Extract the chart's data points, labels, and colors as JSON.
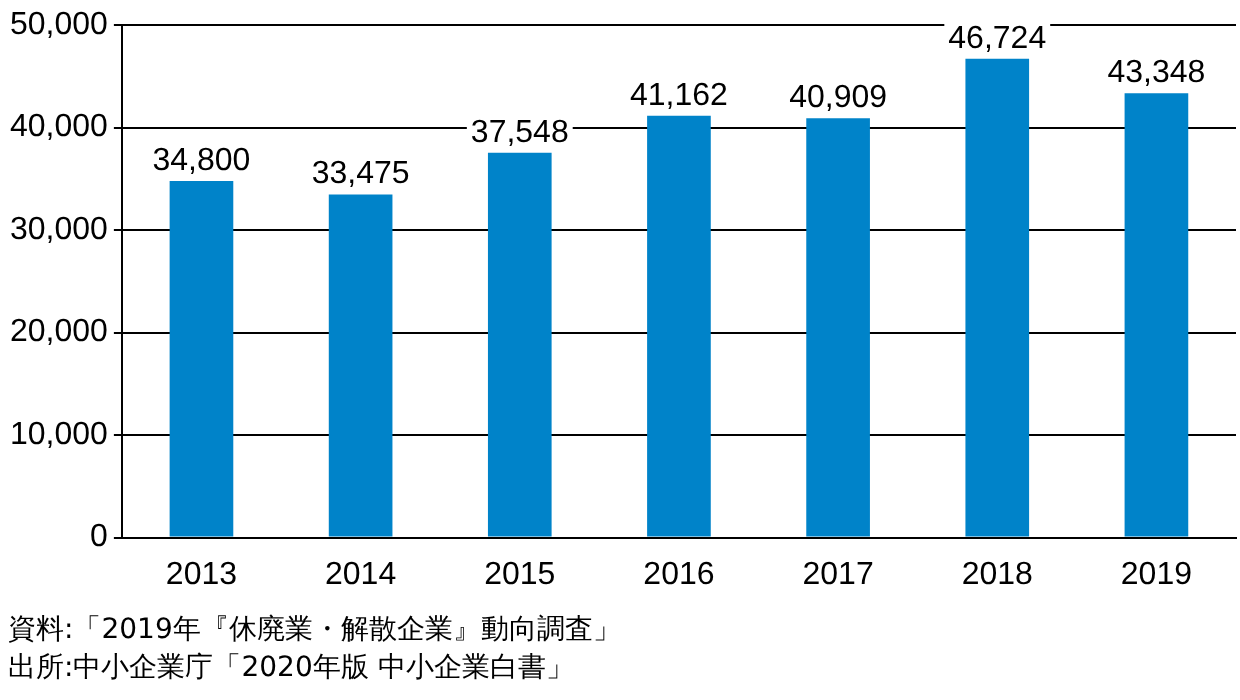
{
  "chart_data": {
    "type": "bar",
    "categories": [
      "2013",
      "2014",
      "2015",
      "2016",
      "2017",
      "2018",
      "2019"
    ],
    "values": [
      34800,
      33475,
      37548,
      41162,
      40909,
      46724,
      43348
    ],
    "color": "#0083c9",
    "ylim": [
      0,
      50000
    ],
    "yticks": [
      {
        "value": 0,
        "label": "0"
      },
      {
        "value": 10000,
        "label": "10,000"
      },
      {
        "value": 20000,
        "label": "20,000"
      },
      {
        "value": 30000,
        "label": "30,000"
      },
      {
        "value": 40000,
        "label": "40,000"
      },
      {
        "value": 50000,
        "label": "50,000"
      }
    ],
    "grid": "y",
    "legend": false,
    "value_labels": [
      "34,800",
      "33,475",
      "37,548",
      "41,162",
      "40,909",
      "46,724",
      "43,348"
    ],
    "annotations": [
      "資料:「2019年『休廃業・解散企業』動向調査」",
      "出所:中小企業庁「2020年版 中小企業白書」"
    ]
  }
}
